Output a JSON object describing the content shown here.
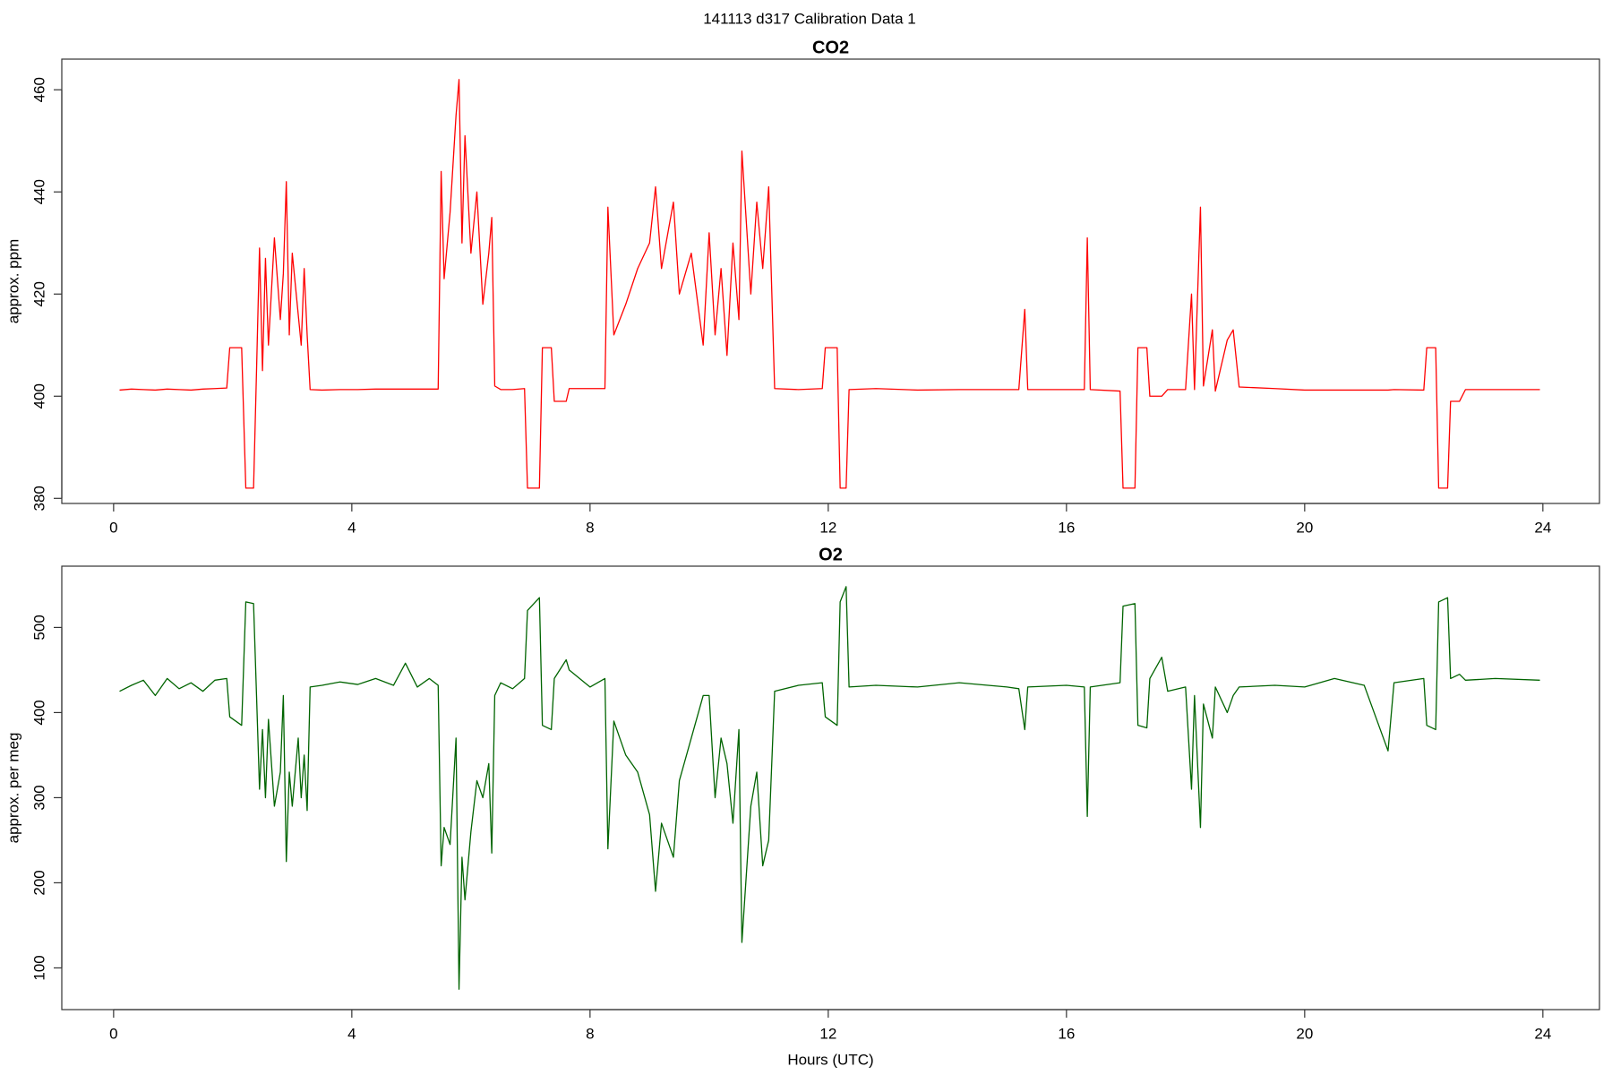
{
  "title": "141113   d317   Calibration Data 1",
  "chart_data": [
    {
      "type": "line",
      "title": "CO2",
      "ylabel": "approx. ppm",
      "xlim": [
        -0.87,
        24.95
      ],
      "ylim": [
        379,
        466
      ],
      "xticks": [
        0,
        4,
        8,
        12,
        16,
        20,
        24
      ],
      "yticks": [
        380,
        400,
        420,
        440,
        460
      ],
      "x": [
        0.1,
        0.3,
        0.5,
        0.7,
        0.9,
        1.1,
        1.3,
        1.5,
        1.7,
        1.9,
        1.95,
        2.15,
        2.22,
        2.35,
        2.4,
        2.45,
        2.5,
        2.55,
        2.6,
        2.7,
        2.8,
        2.85,
        2.9,
        2.95,
        3.0,
        3.1,
        3.15,
        3.2,
        3.25,
        3.3,
        3.5,
        3.8,
        4.1,
        4.4,
        4.7,
        4.9,
        5.1,
        5.3,
        5.45,
        5.5,
        5.55,
        5.65,
        5.75,
        5.8,
        5.85,
        5.9,
        6.0,
        6.1,
        6.2,
        6.3,
        6.35,
        6.4,
        6.5,
        6.7,
        6.9,
        6.95,
        7.15,
        7.2,
        7.35,
        7.4,
        7.6,
        7.65,
        8.0,
        8.25,
        8.3,
        8.4,
        8.6,
        8.8,
        9.0,
        9.1,
        9.2,
        9.4,
        9.5,
        9.7,
        9.9,
        10.0,
        10.1,
        10.2,
        10.3,
        10.4,
        10.5,
        10.55,
        10.7,
        10.8,
        10.9,
        11.0,
        11.1,
        11.5,
        11.9,
        11.95,
        12.15,
        12.2,
        12.3,
        12.35,
        12.8,
        13.5,
        14.2,
        15.0,
        15.2,
        15.3,
        15.35,
        16.0,
        16.3,
        16.35,
        16.4,
        16.9,
        16.95,
        17.15,
        17.2,
        17.35,
        17.4,
        17.6,
        17.7,
        18.0,
        18.1,
        18.15,
        18.25,
        18.3,
        18.45,
        18.5,
        18.7,
        18.8,
        18.9,
        19.5,
        20.0,
        20.5,
        21.0,
        21.4,
        21.5,
        22.0,
        22.05,
        22.2,
        22.25,
        22.4,
        22.45,
        22.6,
        22.7,
        23.2,
        23.95
      ],
      "series": [
        {
          "color": "#ff0000",
          "values": [
            401.2,
            401.4,
            401.3,
            401.2,
            401.4,
            401.3,
            401.2,
            401.4,
            401.5,
            401.6,
            409.5,
            409.5,
            382,
            382,
            405,
            429,
            405,
            427,
            410,
            431,
            415,
            424,
            442,
            412,
            428,
            416,
            410,
            425,
            412,
            401.3,
            401.2,
            401.3,
            401.3,
            401.4,
            401.4,
            401.4,
            401.4,
            401.4,
            401.4,
            444,
            423,
            436,
            455,
            462,
            430,
            451,
            428,
            440,
            418,
            428,
            435,
            402,
            401.3,
            401.3,
            401.5,
            382,
            382,
            409.5,
            409.5,
            399,
            399,
            401.5,
            401.5,
            401.5,
            437,
            412,
            418,
            425,
            430,
            441,
            425,
            438,
            420,
            428,
            410,
            432,
            412,
            425,
            408,
            430,
            415,
            448,
            420,
            438,
            425,
            441,
            401.5,
            401.3,
            401.5,
            409.5,
            409.5,
            382,
            382,
            401.3,
            401.5,
            401.2,
            401.3,
            401.3,
            401.3,
            417,
            401.3,
            401.3,
            401.3,
            431,
            401.3,
            401,
            382,
            382,
            409.5,
            409.5,
            400,
            400,
            401.3,
            401.3,
            420,
            401.3,
            437,
            402,
            413,
            401,
            411,
            413,
            401.8,
            401.5,
            401.2,
            401.2,
            401.2,
            401.2,
            401.3,
            401.2,
            409.5,
            409.5,
            382,
            382,
            399,
            399,
            401.3,
            401.3,
            401.3
          ]
        }
      ]
    },
    {
      "type": "line",
      "title": "O2",
      "ylabel": "approx. per meg",
      "xlabel": "Hours (UTC)",
      "xlim": [
        -0.87,
        24.95
      ],
      "ylim": [
        51,
        572
      ],
      "xticks": [
        0,
        4,
        8,
        12,
        16,
        20,
        24
      ],
      "yticks": [
        100,
        200,
        300,
        400,
        500
      ],
      "x": [
        0.1,
        0.3,
        0.5,
        0.7,
        0.9,
        1.1,
        1.3,
        1.5,
        1.7,
        1.9,
        1.95,
        2.15,
        2.22,
        2.35,
        2.4,
        2.45,
        2.5,
        2.55,
        2.6,
        2.7,
        2.8,
        2.85,
        2.9,
        2.95,
        3.0,
        3.1,
        3.15,
        3.2,
        3.25,
        3.3,
        3.5,
        3.8,
        4.1,
        4.4,
        4.7,
        4.9,
        5.1,
        5.3,
        5.45,
        5.5,
        5.55,
        5.65,
        5.75,
        5.8,
        5.85,
        5.9,
        6.0,
        6.1,
        6.2,
        6.3,
        6.35,
        6.4,
        6.5,
        6.7,
        6.9,
        6.95,
        7.15,
        7.2,
        7.35,
        7.4,
        7.6,
        7.65,
        8.0,
        8.25,
        8.3,
        8.4,
        8.6,
        8.8,
        9.0,
        9.1,
        9.2,
        9.4,
        9.5,
        9.7,
        9.9,
        10.0,
        10.1,
        10.2,
        10.3,
        10.4,
        10.5,
        10.55,
        10.7,
        10.8,
        10.9,
        11.0,
        11.1,
        11.5,
        11.9,
        11.95,
        12.15,
        12.2,
        12.3,
        12.35,
        12.8,
        13.5,
        14.2,
        15.0,
        15.2,
        15.3,
        15.35,
        16.0,
        16.3,
        16.35,
        16.4,
        16.9,
        16.95,
        17.15,
        17.2,
        17.35,
        17.4,
        17.6,
        17.7,
        18.0,
        18.1,
        18.15,
        18.25,
        18.3,
        18.45,
        18.5,
        18.7,
        18.8,
        18.9,
        19.5,
        20.0,
        20.5,
        21.0,
        21.4,
        21.5,
        22.0,
        22.05,
        22.2,
        22.25,
        22.4,
        22.45,
        22.6,
        22.7,
        23.2,
        23.95
      ],
      "series": [
        {
          "color": "#006400",
          "values": [
            425,
            432,
            438,
            420,
            440,
            428,
            435,
            425,
            438,
            440,
            395,
            385,
            530,
            528,
            420,
            310,
            380,
            300,
            392,
            290,
            330,
            420,
            225,
            330,
            290,
            370,
            300,
            350,
            285,
            430,
            432,
            436,
            433,
            440,
            432,
            458,
            430,
            440,
            432,
            220,
            265,
            245,
            370,
            75,
            230,
            180,
            260,
            320,
            300,
            340,
            235,
            420,
            435,
            428,
            440,
            520,
            535,
            385,
            380,
            440,
            462,
            450,
            430,
            440,
            240,
            390,
            350,
            330,
            280,
            190,
            270,
            230,
            320,
            370,
            420,
            420,
            300,
            370,
            340,
            270,
            380,
            130,
            290,
            330,
            220,
            250,
            425,
            432,
            435,
            395,
            385,
            530,
            548,
            430,
            432,
            430,
            435,
            430,
            428,
            380,
            430,
            432,
            430,
            278,
            430,
            435,
            525,
            528,
            385,
            382,
            440,
            465,
            425,
            430,
            310,
            420,
            265,
            410,
            370,
            430,
            400,
            420,
            430,
            432,
            430,
            440,
            432,
            355,
            435,
            440,
            385,
            380,
            530,
            535,
            440,
            445,
            438,
            440,
            438
          ]
        }
      ]
    }
  ]
}
